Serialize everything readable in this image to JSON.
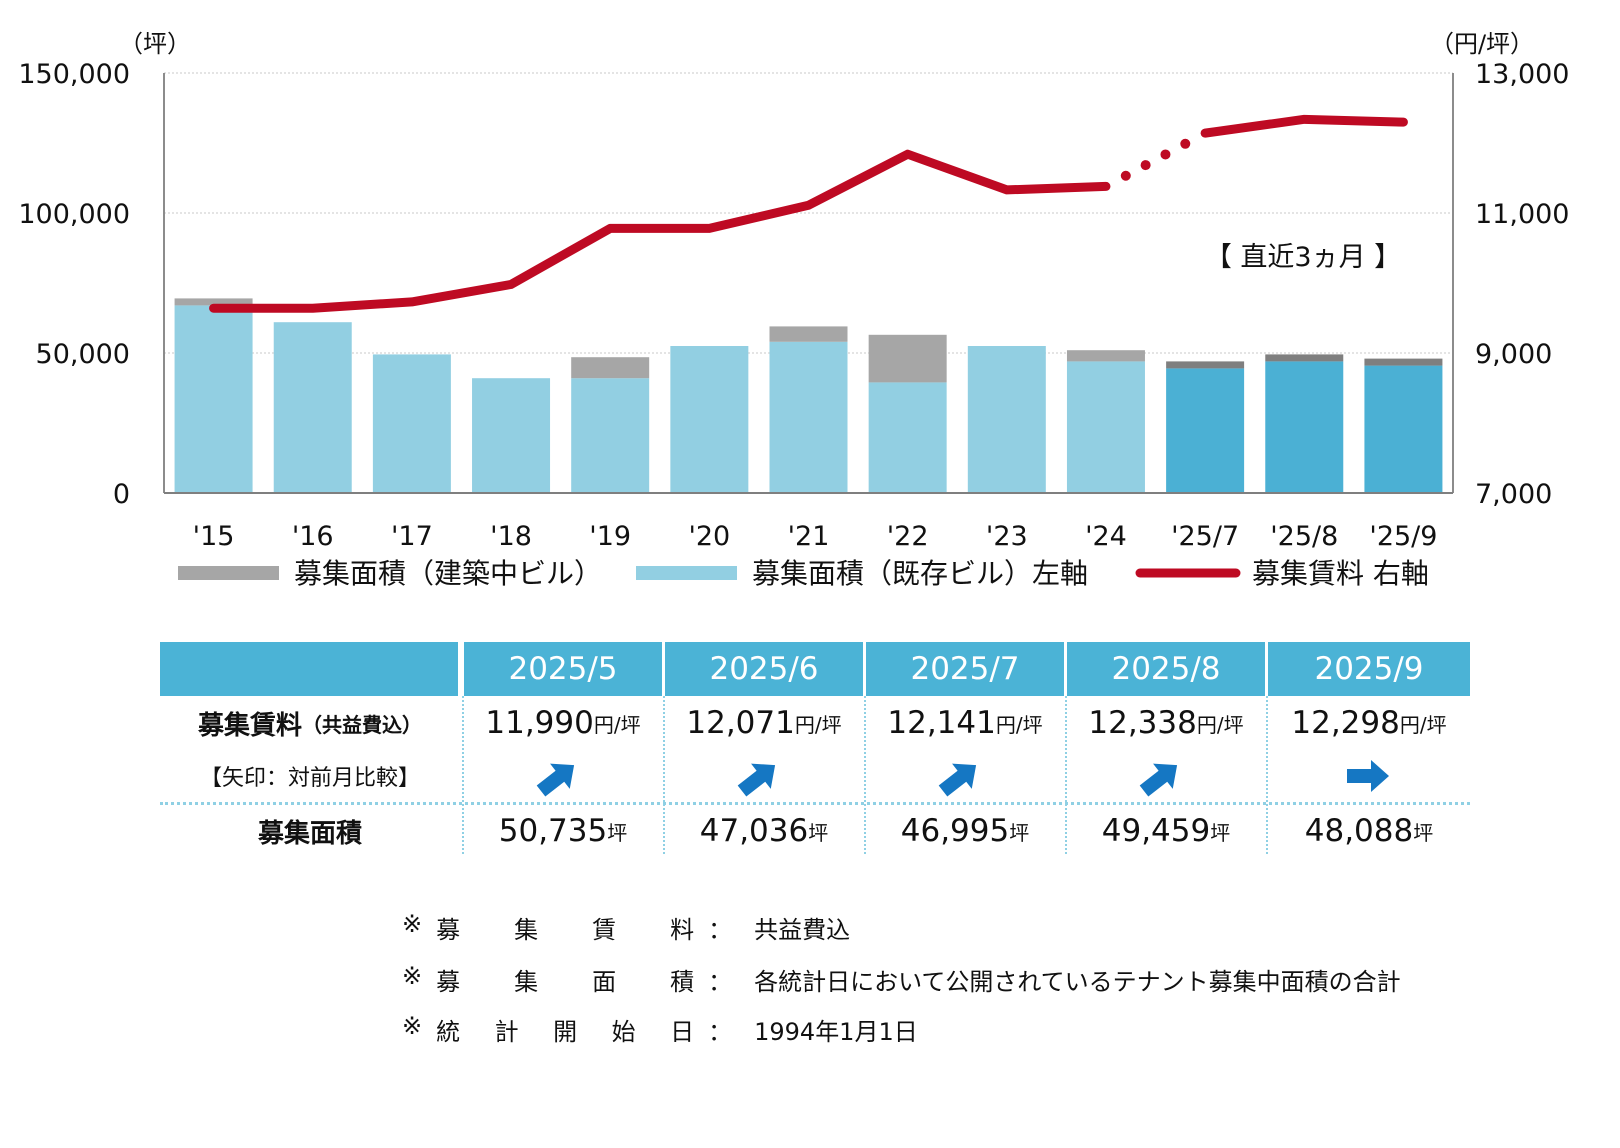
{
  "chart_data": {
    "type": "bar+line",
    "categories": [
      "'15",
      "'16",
      "'17",
      "'18",
      "'19",
      "'20",
      "'21",
      "'22",
      "'23",
      "'24",
      "'25/7",
      "'25/8",
      "'25/9"
    ],
    "series": [
      {
        "name": "募集面積（既存ビル）左軸",
        "axis": "left",
        "type": "stacked-bar",
        "values": [
          67000,
          61000,
          49500,
          41000,
          41000,
          52500,
          54000,
          39500,
          52500,
          47000,
          44500,
          47000,
          45500
        ]
      },
      {
        "name": "募集面積（建築中ビル）",
        "axis": "left",
        "type": "stacked-bar",
        "values": [
          2500,
          0,
          0,
          0,
          7500,
          0,
          5500,
          17000,
          0,
          4000,
          2500,
          2500,
          2500
        ]
      },
      {
        "name": "募集賃料 右軸",
        "axis": "right",
        "type": "line",
        "values": [
          9640,
          9640,
          9730,
          9980,
          10780,
          10780,
          11110,
          11840,
          11330,
          11380,
          12141,
          12338,
          12298
        ],
        "dotted_between": [
          "'24",
          "'25/7"
        ]
      }
    ],
    "left_axis": {
      "unit_label": "（坪）",
      "ylim": [
        0,
        150000
      ],
      "ticks": [
        "0",
        "50,000",
        "100,000",
        "150,000"
      ]
    },
    "right_axis": {
      "unit_label": "（円/坪）",
      "ylim": [
        7000,
        13000
      ],
      "ticks": [
        "7,000",
        "9,000",
        "11,000",
        "13,000"
      ]
    },
    "recent_label": "【 直近3ヵ月 】",
    "recent_from_index": 10,
    "legend": [
      {
        "label": "募集面積（建築中ビル）",
        "color": "#a6a6a6",
        "kind": "bar"
      },
      {
        "label": "募集面積（既存ビル）左軸",
        "color": "#92cfe2",
        "kind": "bar"
      },
      {
        "label": "募集賃料 右軸",
        "color": "#be0a23",
        "kind": "line"
      }
    ]
  },
  "colors": {
    "existing_bar": "#92cfe2",
    "existing_bar_recent": "#4bb0d4",
    "construction_bar": "#a6a6a6",
    "construction_bar_recent": "#7f7f7f",
    "rent_line": "#be0a23",
    "table_header": "#4bb3d6",
    "arrow": "#1577c3"
  },
  "table": {
    "months": [
      "2025/5",
      "2025/6",
      "2025/7",
      "2025/8",
      "2025/9"
    ],
    "rent_label": "募集賃料",
    "rent_label_note": "（共益費込）",
    "arrow_label": "【矢印：対前月比較】",
    "rent_values": [
      "11,990",
      "12,071",
      "12,141",
      "12,338",
      "12,298"
    ],
    "rent_unit": "円/坪",
    "arrows": [
      "up",
      "up",
      "up",
      "up",
      "flat"
    ],
    "area_label": "募集面積",
    "area_values": [
      "50,735",
      "47,036",
      "46,995",
      "49,459",
      "48,088"
    ],
    "area_unit": "坪"
  },
  "notes": [
    {
      "mark": "※",
      "key": [
        "募",
        "集",
        "賃",
        "料"
      ],
      "colon": "：",
      "text": "共益費込"
    },
    {
      "mark": "※",
      "key": [
        "募",
        "集",
        "面",
        "積"
      ],
      "colon": "：",
      "text": "各統計日において公開されているテナント募集中面積の合計"
    },
    {
      "mark": "※",
      "key": [
        "統",
        "計",
        "開",
        "始",
        "日"
      ],
      "colon": "：",
      "text": "1994年1月1日"
    }
  ]
}
